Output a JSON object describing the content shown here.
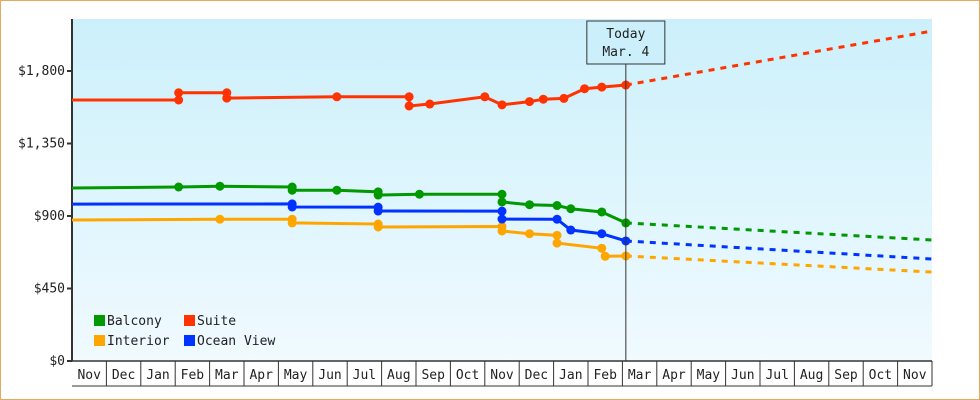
{
  "chart_data": {
    "type": "line",
    "title": "",
    "xlabel": "",
    "ylabel": "",
    "x_unit": "months from start of axis (0 = start of first Nov)",
    "categories": [
      "Nov",
      "Dec",
      "Jan",
      "Feb",
      "Mar",
      "Apr",
      "May",
      "Jun",
      "Jul",
      "Aug",
      "Sep",
      "Oct",
      "Nov",
      "Dec",
      "Jan",
      "Feb",
      "Mar",
      "Apr",
      "May",
      "Jun",
      "Jul",
      "Aug",
      "Sep",
      "Oct",
      "Nov"
    ],
    "yticks": [
      0,
      450,
      900,
      1350,
      1800
    ],
    "ytick_labels": [
      "$0",
      "$450",
      "$900",
      "$1,350",
      "$1,800"
    ],
    "ylim": [
      0,
      1800
    ],
    "xlim": [
      0,
      25
    ],
    "grid": false,
    "legend_position": "bottom-left",
    "today": {
      "label": "Today",
      "date": "Mar. 4",
      "x": 16.1
    },
    "series": [
      {
        "name": "Balcony",
        "color": "#009900",
        "points": [
          [
            0,
            1074
          ],
          [
            3.1,
            1080
          ],
          [
            4.3,
            1085
          ],
          [
            6.4,
            1080
          ],
          [
            6.4,
            1060
          ],
          [
            7.7,
            1060
          ],
          [
            8.9,
            1050
          ],
          [
            8.9,
            1030
          ],
          [
            10.1,
            1035
          ],
          [
            12.5,
            1035
          ],
          [
            12.5,
            987
          ],
          [
            13.3,
            970
          ],
          [
            14.1,
            965
          ],
          [
            14.5,
            945
          ],
          [
            15.4,
            925
          ],
          [
            16.1,
            857
          ]
        ],
        "projection": [
          [
            16.1,
            857
          ],
          [
            25,
            751
          ]
        ]
      },
      {
        "name": "Suite",
        "color": "#ff3300",
        "points": [
          [
            0,
            1620
          ],
          [
            3.1,
            1620
          ],
          [
            3.1,
            1665
          ],
          [
            4.5,
            1665
          ],
          [
            4.5,
            1632
          ],
          [
            7.7,
            1640
          ],
          [
            9.8,
            1640
          ],
          [
            9.8,
            1583
          ],
          [
            10.4,
            1595
          ],
          [
            12.0,
            1640
          ],
          [
            12.5,
            1590
          ],
          [
            13.3,
            1610
          ],
          [
            13.7,
            1625
          ],
          [
            14.3,
            1630
          ],
          [
            14.9,
            1690
          ],
          [
            15.4,
            1700
          ],
          [
            16.1,
            1713
          ]
        ],
        "projection": [
          [
            16.1,
            1713
          ],
          [
            25,
            2048
          ]
        ]
      },
      {
        "name": "Interior",
        "color": "#ffa500",
        "points": [
          [
            0,
            875
          ],
          [
            4.3,
            880
          ],
          [
            6.4,
            880
          ],
          [
            6.4,
            857
          ],
          [
            8.9,
            850
          ],
          [
            8.9,
            832
          ],
          [
            12.5,
            835
          ],
          [
            12.5,
            807
          ],
          [
            13.3,
            790
          ],
          [
            14.1,
            780
          ],
          [
            14.1,
            732
          ],
          [
            15.4,
            700
          ],
          [
            15.5,
            650
          ],
          [
            16.1,
            652
          ]
        ],
        "projection": [
          [
            16.1,
            652
          ],
          [
            25,
            552
          ]
        ]
      },
      {
        "name": "Ocean View",
        "color": "#0033ff",
        "points": [
          [
            0,
            974
          ],
          [
            6.4,
            975
          ],
          [
            6.4,
            956
          ],
          [
            8.9,
            955
          ],
          [
            8.9,
            931
          ],
          [
            12.5,
            930
          ],
          [
            12.5,
            881
          ],
          [
            14.1,
            880
          ],
          [
            14.5,
            813
          ],
          [
            15.4,
            790
          ],
          [
            16.1,
            745
          ]
        ],
        "projection": [
          [
            16.1,
            745
          ],
          [
            25,
            633
          ]
        ]
      }
    ]
  }
}
